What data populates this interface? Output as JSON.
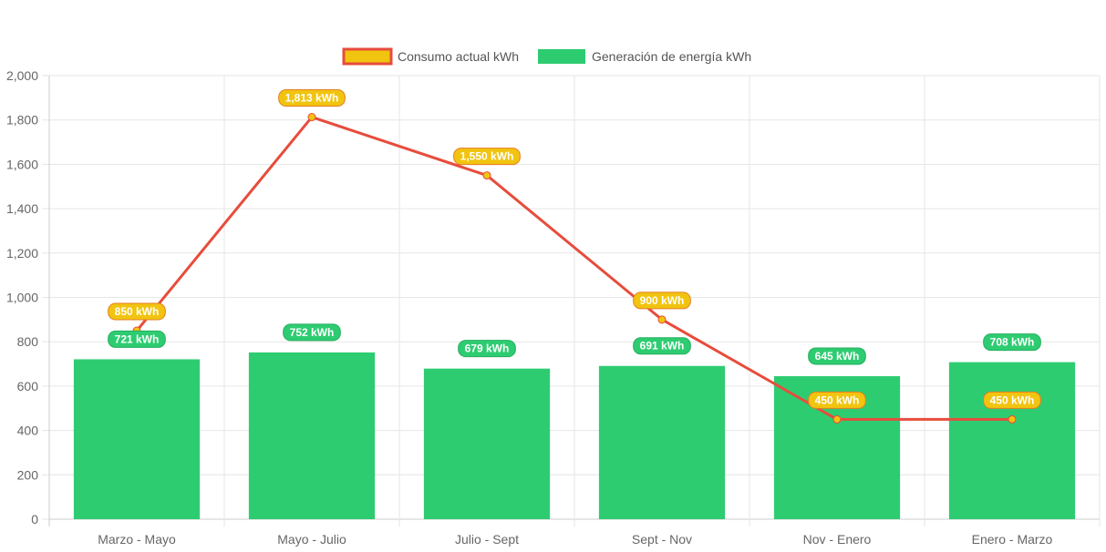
{
  "chart_data": {
    "type": "bar",
    "categories": [
      "Marzo - Mayo",
      "Mayo - Julio",
      "Julio - Sept",
      "Sept - Nov",
      "Nov - Enero",
      "Enero - Marzo"
    ],
    "series": [
      {
        "name": "Consumo actual kWh",
        "type": "line",
        "values": [
          850,
          1813,
          1550,
          900,
          450,
          450
        ],
        "labels": [
          "850 kWh",
          "1,813 kWh",
          "1,550 kWh",
          "900 kWh",
          "450 kWh",
          "450 kWh"
        ],
        "line_color": "#e74c3c",
        "fill_color": "#f1c40f"
      },
      {
        "name": "Generación de energía kWh",
        "type": "bar",
        "values": [
          721,
          752,
          679,
          691,
          645,
          708
        ],
        "labels": [
          "721 kWh",
          "752 kWh",
          "679 kWh",
          "691 kWh",
          "645 kWh",
          "708 kWh"
        ],
        "color": "#2ecc71"
      }
    ],
    "ylim": [
      0,
      2000
    ],
    "yticks": [
      "0",
      "200",
      "400",
      "600",
      "800",
      "1,000",
      "1,200",
      "1,400",
      "1,600",
      "1,800",
      "2,000"
    ],
    "legend": "top-center",
    "grid": true
  }
}
